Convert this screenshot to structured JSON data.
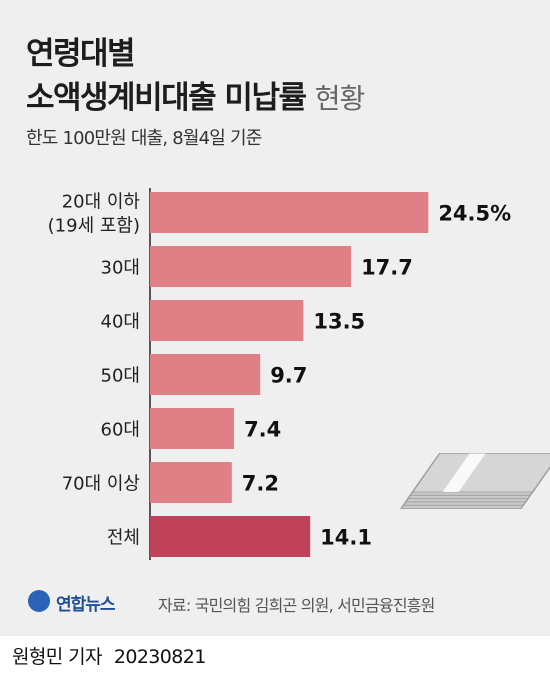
{
  "header": {
    "title_line1": "연령대별",
    "title_line2": "소액생계비대출 미납률",
    "title_suffix": "현황",
    "subtitle": "한도 100만원 대출, 8월4일 기준"
  },
  "chart_data": {
    "type": "bar",
    "orientation": "horizontal",
    "categories": [
      "20대 이하 (19세 포함)",
      "30대",
      "40대",
      "50대",
      "60대",
      "70대 이상",
      "전체"
    ],
    "category_lines": [
      [
        "20대 이하",
        "(19세 포함)"
      ],
      [
        "30대"
      ],
      [
        "40대"
      ],
      [
        "50대"
      ],
      [
        "60대"
      ],
      [
        "70대 이상"
      ],
      [
        "전체"
      ]
    ],
    "values": [
      24.5,
      17.7,
      13.5,
      9.7,
      7.4,
      7.2,
      14.1
    ],
    "value_labels": [
      "24.5%",
      "17.7",
      "13.5",
      "9.7",
      "7.4",
      "7.2",
      "14.1"
    ],
    "highlight_index": 6,
    "colors": {
      "bar": "#e08086",
      "highlight": "#c0415a"
    },
    "xlim": [
      0,
      25
    ]
  },
  "footer": {
    "logo_text": "연합뉴스",
    "source": "자료: 국민의힘 김희곤 의원, 서민금융진흥원"
  },
  "credit": {
    "author": "원형민 기자",
    "date": "20230821"
  },
  "colors": {
    "panel": "#efefef",
    "axis": "#222222",
    "logo": "#2a63b8"
  }
}
